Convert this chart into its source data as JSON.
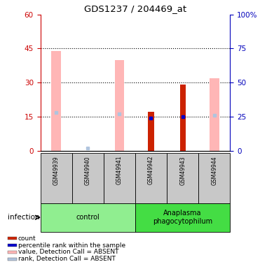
{
  "title": "GDS1237 / 204469_at",
  "samples": [
    "GSM49939",
    "GSM49940",
    "GSM49941",
    "GSM49942",
    "GSM49943",
    "GSM49944"
  ],
  "red_bars": [
    0,
    0,
    0,
    17,
    29,
    0
  ],
  "pink_bars": [
    44,
    0,
    40,
    0,
    0,
    32
  ],
  "blue_dots_pct": [
    0,
    0,
    0,
    24,
    25,
    0
  ],
  "light_blue_dots_pct": [
    28,
    2,
    27,
    0,
    0,
    26
  ],
  "has_red": [
    false,
    false,
    false,
    true,
    true,
    false
  ],
  "has_pink": [
    true,
    false,
    true,
    false,
    false,
    true
  ],
  "has_blue": [
    false,
    false,
    false,
    true,
    true,
    false
  ],
  "has_light_blue": [
    true,
    true,
    true,
    false,
    false,
    true
  ],
  "ylim_left": [
    0,
    60
  ],
  "ylim_right": [
    0,
    100
  ],
  "yticks_left": [
    0,
    15,
    30,
    45,
    60
  ],
  "yticks_right": [
    0,
    25,
    50,
    75,
    100
  ],
  "ytick_labels_right": [
    "0",
    "25",
    "50",
    "75",
    "100%"
  ],
  "left_axis_color": "#cc0000",
  "right_axis_color": "#0000bb",
  "legend_items": [
    {
      "color": "#cc2200",
      "label": "count"
    },
    {
      "color": "#0000cc",
      "label": "percentile rank within the sample"
    },
    {
      "color": "#ffb6b6",
      "label": "value, Detection Call = ABSENT"
    },
    {
      "color": "#b0c4de",
      "label": "rank, Detection Call = ABSENT"
    }
  ],
  "infection_label": "infection",
  "control_group_color": "#90ee90",
  "infection_group_color": "#44dd44",
  "sample_box_color": "#c8c8c8",
  "group_ranges": [
    [
      0,
      2
    ],
    [
      3,
      5
    ]
  ],
  "group_labels": [
    "control",
    "Anaplasma\nphagocytophilum"
  ],
  "pink_bar_width": 0.3,
  "red_bar_width": 0.18,
  "dot_size": 3.5
}
